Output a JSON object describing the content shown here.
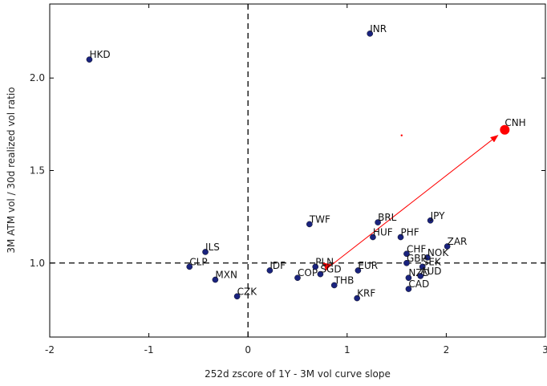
{
  "chart_data": {
    "type": "scatter",
    "title": "",
    "xlabel": "252d zscore of 1Y - 3M vol curve slope",
    "ylabel": "3M ATM vol / 30d realized vol ratio",
    "xlim": [
      -2,
      3
    ],
    "ylim": [
      0.6,
      2.4
    ],
    "x_ticks": [
      "-2",
      "-1",
      "0",
      "1",
      "2",
      "3"
    ],
    "y_ticks": [
      "1.0",
      "1.5",
      "2.0"
    ],
    "x_tick_values": [
      -2,
      -1,
      0,
      1,
      2,
      3
    ],
    "y_tick_values": [
      1.0,
      1.5,
      2.0
    ],
    "reference_lines": {
      "x": 0,
      "y": 1.0,
      "style": "dashed"
    },
    "grid": false,
    "point_color": "#1a237e",
    "highlight_color": "#ff0000",
    "points": [
      {
        "label": "HKD",
        "x": -1.6,
        "y": 2.1
      },
      {
        "label": "INR",
        "x": 1.23,
        "y": 2.24
      },
      {
        "label": "ILS",
        "x": -0.43,
        "y": 1.06
      },
      {
        "label": "CLP",
        "x": -0.59,
        "y": 0.98
      },
      {
        "label": "MXN",
        "x": -0.33,
        "y": 0.91
      },
      {
        "label": "CZK",
        "x": -0.11,
        "y": 0.82
      },
      {
        "label": "IDF",
        "x": 0.22,
        "y": 0.96
      },
      {
        "label": "COP",
        "x": 0.5,
        "y": 0.92
      },
      {
        "label": "SGD",
        "x": 0.73,
        "y": 0.94
      },
      {
        "label": "PLN",
        "x": 0.68,
        "y": 0.98
      },
      {
        "label": "TWF",
        "x": 0.62,
        "y": 1.21
      },
      {
        "label": "THB",
        "x": 0.87,
        "y": 0.88
      },
      {
        "label": "EUR",
        "x": 1.11,
        "y": 0.96
      },
      {
        "label": "KRF",
        "x": 1.1,
        "y": 0.81
      },
      {
        "label": "BRL",
        "x": 1.31,
        "y": 1.22
      },
      {
        "label": "HUF",
        "x": 1.26,
        "y": 1.14
      },
      {
        "label": "PHF",
        "x": 1.54,
        "y": 1.14
      },
      {
        "label": "JPY",
        "x": 1.84,
        "y": 1.23
      },
      {
        "label": "ZAR",
        "x": 2.01,
        "y": 1.09
      },
      {
        "label": "CHF",
        "x": 1.6,
        "y": 1.05
      },
      {
        "label": "NOK",
        "x": 1.81,
        "y": 1.03
      },
      {
        "label": "GBP",
        "x": 1.6,
        "y": 1.0
      },
      {
        "label": "SEK",
        "x": 1.76,
        "y": 0.98
      },
      {
        "label": "NZD",
        "x": 1.62,
        "y": 0.92
      },
      {
        "label": "AUD",
        "x": 1.74,
        "y": 0.93
      },
      {
        "label": "CAD",
        "x": 1.62,
        "y": 0.86
      }
    ],
    "highlight_point": {
      "label": "CNH",
      "x": 2.59,
      "y": 1.72
    },
    "arrow": {
      "from": [
        0.82,
        0.98
      ],
      "to": [
        2.52,
        1.69
      ],
      "color": "#ff0000"
    },
    "stray_marker": {
      "x": 1.55,
      "y": 1.69
    }
  }
}
